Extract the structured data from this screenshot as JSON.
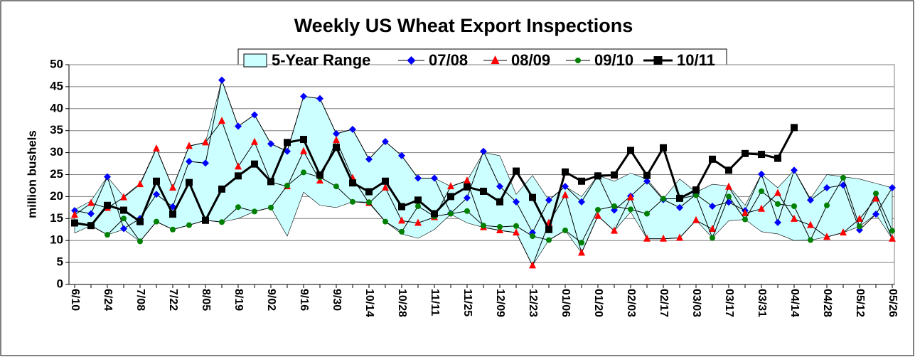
{
  "chart_data": {
    "type": "line",
    "title": "Weekly US Wheat Export Inspections",
    "y_label": "million bushels",
    "categories": [
      "6/10",
      null,
      "6/24",
      null,
      "7/08",
      null,
      "7/22",
      null,
      "8/05",
      null,
      "8/19",
      null,
      "9/02",
      null,
      "9/16",
      null,
      "9/30",
      null,
      "10/14",
      null,
      "10/28",
      null,
      "11/11",
      null,
      "11/25",
      null,
      "12/09",
      null,
      "12/23",
      null,
      "01/06",
      null,
      "01/20",
      null,
      "02/03",
      null,
      "02/17",
      null,
      "03/03",
      null,
      "03/17",
      null,
      "03/31",
      null,
      "04/14",
      null,
      "04/28",
      null,
      "05/12",
      null,
      "05/26"
    ],
    "ylim": [
      0,
      50
    ],
    "yticks": [
      0,
      5,
      10,
      15,
      20,
      25,
      30,
      35,
      40,
      45,
      50
    ],
    "grid": true,
    "legend": "top",
    "range": {
      "name": "5-Year Range",
      "color": "#ccffff",
      "upper": [
        17,
        19,
        24.5,
        20,
        23,
        31,
        22,
        31.5,
        32.3,
        46.5,
        36,
        38.6,
        32,
        30.3,
        42.8,
        42.3,
        34.3,
        35.3,
        28.5,
        32.5,
        29.3,
        24.2,
        24.2,
        22.3,
        23.6,
        30,
        29.3,
        20.5,
        24.8,
        19.2,
        22.3,
        20,
        24.8,
        23.5,
        25.3,
        24,
        19.5,
        24,
        21,
        22.8,
        22.4,
        18,
        25.1,
        22,
        26,
        19.5,
        25,
        24.5,
        24,
        23,
        22
      ],
      "lower": [
        11.7,
        13.4,
        11.3,
        12.5,
        9.8,
        14.3,
        12.5,
        13.5,
        14.6,
        14.2,
        15,
        16.6,
        17.5,
        11,
        21,
        18,
        17.5,
        18.8,
        18.5,
        14.3,
        11.5,
        10.5,
        12.5,
        16,
        14,
        13,
        12.3,
        11.8,
        4.3,
        10.1,
        12.3,
        7.2,
        15.6,
        12.2,
        16.5,
        10.4,
        10.4,
        10.6,
        14.6,
        10.6,
        14.5,
        14.8,
        12,
        11.5,
        10,
        10.1,
        10.8,
        11.8,
        13.2,
        16,
        10.4
      ]
    },
    "series": [
      {
        "name": "07/08",
        "color": "#0000ff",
        "marker": "diamond",
        "values": [
          16.8,
          16.1,
          24.5,
          12.7,
          15,
          20.5,
          17.7,
          28,
          27.6,
          46.5,
          36,
          38.6,
          32,
          30.3,
          42.8,
          42.3,
          34.3,
          35.3,
          28.5,
          32.5,
          29.3,
          24.2,
          24.2,
          16.2,
          19.7,
          30.3,
          22.3,
          18.8,
          11.8,
          19.2,
          22.3,
          18.8,
          24.8,
          16.9,
          20.1,
          23.5,
          19.3,
          17.5,
          20.5,
          17.8,
          18.7,
          16.8,
          25.1,
          14.1,
          26,
          19.2,
          22,
          22.6,
          12.4,
          16,
          22
        ]
      },
      {
        "name": "08/09",
        "color": "#ff0000",
        "marker": "triangle",
        "values": [
          15.8,
          18.5,
          17.4,
          19.8,
          22.8,
          30.9,
          22,
          31.5,
          32.3,
          37.2,
          26.8,
          32.4,
          23.3,
          22.3,
          30.3,
          23.6,
          32.8,
          24.2,
          18.5,
          22,
          14.5,
          14,
          15.3,
          22.3,
          23.6,
          13,
          12.3,
          11.8,
          4.3,
          14,
          20.3,
          7.2,
          15.6,
          12.2,
          19.8,
          10.4,
          10.4,
          10.6,
          14.6,
          12.6,
          22.2,
          16.2,
          17.2,
          20.8,
          14.9,
          13.5,
          10.8,
          11.8,
          14.9,
          19.5,
          10.4
        ]
      },
      {
        "name": "09/10",
        "color": "#008000",
        "marker": "circle",
        "values": [
          14,
          13.4,
          11.3,
          15,
          9.8,
          14.3,
          12.5,
          13.5,
          14.6,
          14.2,
          17.6,
          16.6,
          17.5,
          22.5,
          25.5,
          24.4,
          22.3,
          18.8,
          18.7,
          14.3,
          12,
          17.8,
          15.5,
          16.1,
          16.7,
          13.4,
          13.1,
          13.3,
          11,
          10.1,
          12.3,
          9.5,
          17,
          17.8,
          17.1,
          16.1,
          19.5,
          19.5,
          20.3,
          10.6,
          20,
          14.8,
          21.2,
          18.3,
          17.8,
          10.1,
          18,
          24.3,
          13.2,
          20.7,
          12.2
        ]
      },
      {
        "name": "10/11",
        "color": "#000000",
        "marker": "square",
        "values": [
          14,
          13.4,
          18,
          16.9,
          14.3,
          23.5,
          16,
          23.2,
          14.6,
          21.7,
          24.7,
          27.4,
          23.4,
          32.3,
          33,
          24.9,
          31.2,
          23.1,
          21.1,
          23.5,
          17.7,
          19.2,
          16.1,
          20,
          22.2,
          21.2,
          18.8,
          25.8,
          19.8,
          12.5,
          25.6,
          23.5,
          24.7,
          24.9,
          30.5,
          24.8,
          31.1,
          19.6,
          21.5,
          28.5,
          26,
          29.8,
          29.6,
          28.7,
          35.7,
          null,
          null,
          null,
          null,
          null,
          null
        ]
      }
    ]
  }
}
